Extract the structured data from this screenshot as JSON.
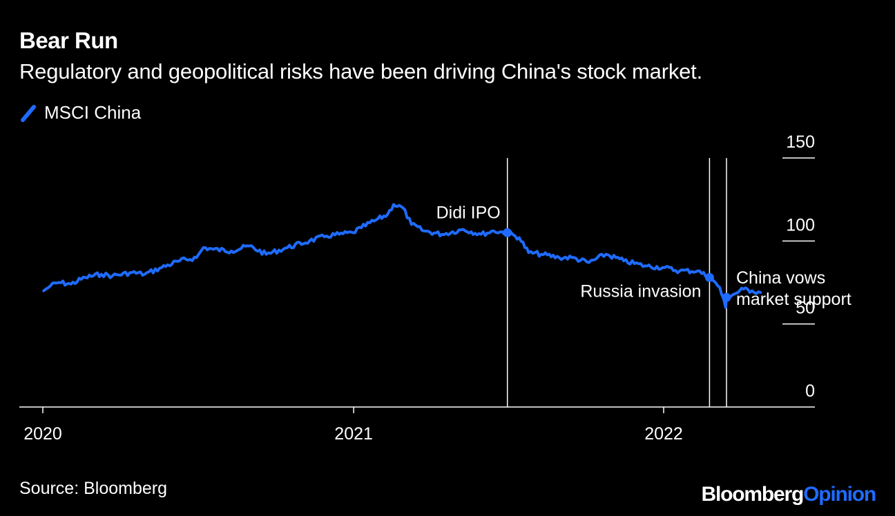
{
  "title": "Bear Run",
  "subtitle": "Regulatory and geopolitical risks have been driving China's stock market.",
  "legend": {
    "label": "MSCI China",
    "color": "#1f6bff"
  },
  "source": "Source: Bloomberg",
  "brand": {
    "part1": "Bloomberg",
    "part2": "Opinion"
  },
  "chart_data": {
    "type": "line",
    "series": [
      {
        "name": "MSCI China",
        "color": "#1f6bff",
        "points": [
          [
            "2020-01-02",
            70
          ],
          [
            "2020-01-10",
            73
          ],
          [
            "2020-01-20",
            75
          ],
          [
            "2020-02-03",
            74
          ],
          [
            "2020-02-20",
            78
          ],
          [
            "2020-03-10",
            80
          ],
          [
            "2020-03-23",
            79
          ],
          [
            "2020-04-15",
            81
          ],
          [
            "2020-04-30",
            80
          ],
          [
            "2020-05-20",
            84
          ],
          [
            "2020-06-10",
            88
          ],
          [
            "2020-06-30",
            90
          ],
          [
            "2020-07-08",
            96
          ],
          [
            "2020-07-20",
            95
          ],
          [
            "2020-08-10",
            94
          ],
          [
            "2020-08-31",
            97
          ],
          [
            "2020-09-20",
            92
          ],
          [
            "2020-10-15",
            96
          ],
          [
            "2020-11-10",
            100
          ],
          [
            "2020-11-30",
            103
          ],
          [
            "2020-12-15",
            104
          ],
          [
            "2020-12-31",
            105
          ],
          [
            "2021-01-10",
            108
          ],
          [
            "2021-01-25",
            112
          ],
          [
            "2021-02-10",
            116
          ],
          [
            "2021-02-17",
            122
          ],
          [
            "2021-02-28",
            120
          ],
          [
            "2021-03-10",
            110
          ],
          [
            "2021-03-25",
            106
          ],
          [
            "2021-04-15",
            104
          ],
          [
            "2021-05-10",
            107
          ],
          [
            "2021-05-31",
            104
          ],
          [
            "2021-06-15",
            106
          ],
          [
            "2021-06-30",
            105
          ],
          [
            "2021-07-15",
            102
          ],
          [
            "2021-07-26",
            93
          ],
          [
            "2021-08-10",
            92
          ],
          [
            "2021-08-31",
            90
          ],
          [
            "2021-09-15",
            90
          ],
          [
            "2021-10-05",
            87
          ],
          [
            "2021-10-25",
            92
          ],
          [
            "2021-11-15",
            88
          ],
          [
            "2021-12-10",
            85
          ],
          [
            "2021-12-31",
            84
          ],
          [
            "2022-01-20",
            82
          ],
          [
            "2022-02-10",
            82
          ],
          [
            "2022-02-24",
            78
          ],
          [
            "2022-03-08",
            72
          ],
          [
            "2022-03-15",
            60
          ],
          [
            "2022-03-16",
            66
          ],
          [
            "2022-03-25",
            68
          ],
          [
            "2022-04-05",
            71
          ],
          [
            "2022-04-15",
            70
          ],
          [
            "2022-04-25",
            69
          ]
        ]
      }
    ],
    "xlim": [
      "2020-01-01",
      "2022-05-10"
    ],
    "ylim": [
      0,
      150
    ],
    "x_ticks": [
      {
        "date": "2020-01-01",
        "label": "2020"
      },
      {
        "date": "2021-01-01",
        "label": "2021"
      },
      {
        "date": "2022-01-01",
        "label": "2022"
      }
    ],
    "y_ticks": [
      {
        "value": 150,
        "label": "150"
      },
      {
        "value": 100,
        "label": "100"
      },
      {
        "value": 50,
        "label": "50"
      },
      {
        "value": 0,
        "label": "0"
      }
    ],
    "y_axis_position": "right",
    "grid": false,
    "events": [
      {
        "date": "2021-07-01",
        "label": "Didi IPO",
        "value": 105
      },
      {
        "date": "2022-02-24",
        "label": "Russia invasion",
        "value": 78
      },
      {
        "date": "2022-03-16",
        "label": "China vows market support",
        "value": 66
      }
    ]
  }
}
